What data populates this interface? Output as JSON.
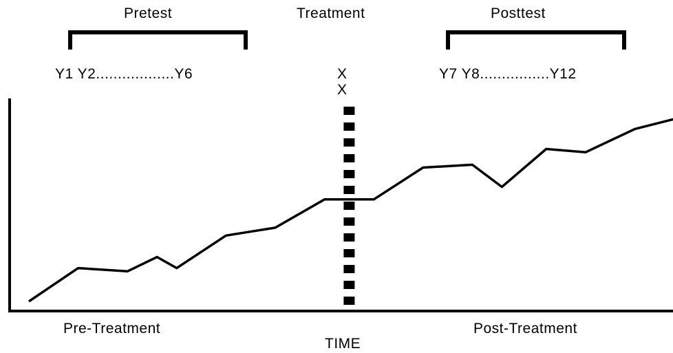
{
  "phases": {
    "pretest": "Pretest",
    "treatment": "Treatment",
    "posttest": "Posttest"
  },
  "observations": {
    "pre": "Y1  Y2..................Y6",
    "post": "Y7 Y8................Y12"
  },
  "treatment_marks": [
    "X",
    "X"
  ],
  "x_axis": {
    "label": "TIME",
    "left_region": "Pre-Treatment",
    "right_region": "Post-Treatment"
  },
  "series": {
    "points": [
      [
        0,
        0.0
      ],
      [
        1,
        0.93
      ],
      [
        2,
        0.84
      ],
      [
        2.6,
        1.24
      ],
      [
        3,
        0.93
      ],
      [
        4,
        1.84
      ],
      [
        5,
        2.06
      ],
      [
        6,
        2.85
      ],
      [
        7,
        2.85
      ],
      [
        8,
        3.74
      ],
      [
        9,
        3.82
      ],
      [
        9.6,
        3.2
      ],
      [
        10.5,
        4.26
      ],
      [
        11.3,
        4.17
      ],
      [
        12.3,
        4.82
      ],
      [
        13.2,
        5.13
      ]
    ],
    "treatment_index": 6.5,
    "color": "#000000"
  }
}
